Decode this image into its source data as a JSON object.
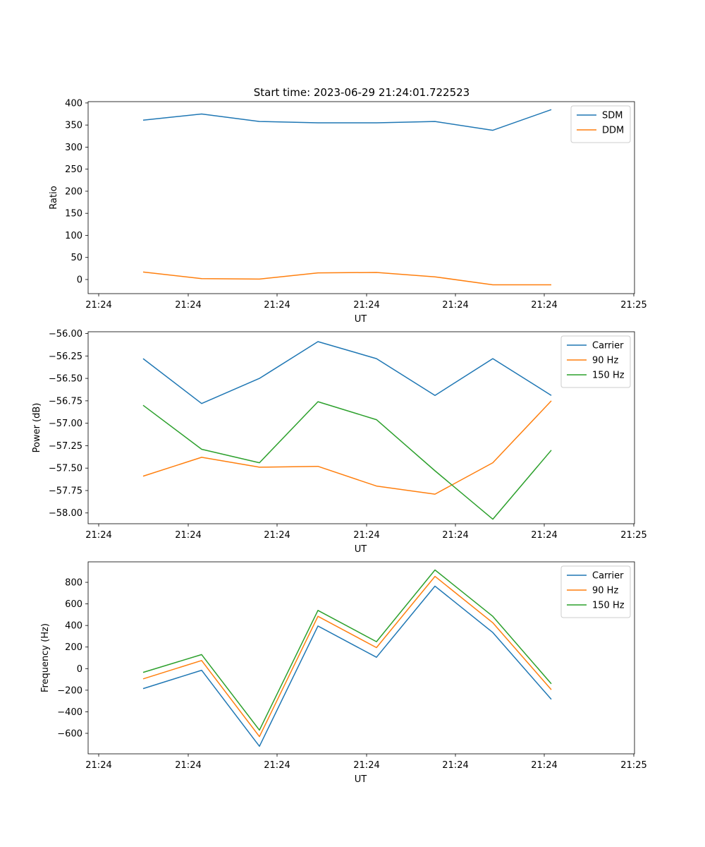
{
  "figure": {
    "title": "Start time: 2023-06-29 21:24:01.722523"
  },
  "colors": {
    "blue": "#1f77b4",
    "orange": "#ff7f0e",
    "green": "#2ca02c"
  },
  "chart_data": [
    {
      "type": "line",
      "title": "Start time: 2023-06-29 21:24:01.722523",
      "xlabel": "UT",
      "ylabel": "Ratio",
      "x_tick_labels": [
        "21:24",
        "21:24",
        "21:24",
        "21:24",
        "21:24",
        "21:24",
        "21:24",
        "21:25"
      ],
      "yticks": [
        0,
        50,
        100,
        150,
        200,
        250,
        300,
        350,
        400
      ],
      "ylim": [
        -32,
        403
      ],
      "legend_position": "upper right",
      "grid": false,
      "series": [
        {
          "name": "SDM",
          "color": "#1f77b4",
          "values": [
            361,
            375,
            358,
            355,
            355,
            358,
            338,
            385
          ]
        },
        {
          "name": "DDM",
          "color": "#ff7f0e",
          "values": [
            17,
            2,
            1,
            15,
            16,
            6,
            -12,
            -12
          ]
        }
      ]
    },
    {
      "type": "line",
      "title": "",
      "xlabel": "UT",
      "ylabel": "Power (dB)",
      "x_tick_labels": [
        "21:24",
        "21:24",
        "21:24",
        "21:24",
        "21:24",
        "21:24",
        "21:24",
        "21:25"
      ],
      "yticks": [
        -58.0,
        -57.75,
        -57.5,
        -57.25,
        -57.0,
        -56.75,
        -56.5,
        -56.25,
        -56.0
      ],
      "ylim": [
        -58.12,
        -55.98
      ],
      "legend_position": "upper right",
      "grid": false,
      "series": [
        {
          "name": "Carrier",
          "color": "#1f77b4",
          "values": [
            -56.28,
            -56.78,
            -56.5,
            -56.09,
            -56.28,
            -56.69,
            -56.28,
            -56.69
          ]
        },
        {
          "name": "90 Hz",
          "color": "#ff7f0e",
          "values": [
            -57.59,
            -57.38,
            -57.49,
            -57.48,
            -57.7,
            -57.79,
            -57.44,
            -56.75
          ]
        },
        {
          "name": "150 Hz",
          "color": "#2ca02c",
          "values": [
            -56.8,
            -57.29,
            -57.44,
            -56.76,
            -56.96,
            -57.53,
            -58.07,
            -57.3
          ]
        }
      ]
    },
    {
      "type": "line",
      "title": "",
      "xlabel": "UT",
      "ylabel": "Frequency (Hz)",
      "x_tick_labels": [
        "21:24",
        "21:24",
        "21:24",
        "21:24",
        "21:24",
        "21:24",
        "21:24",
        "21:25"
      ],
      "yticks": [
        -600,
        -400,
        -200,
        0,
        200,
        400,
        600,
        800
      ],
      "ylim": [
        -790,
        990
      ],
      "legend_position": "upper right",
      "grid": false,
      "series": [
        {
          "name": "Carrier",
          "color": "#1f77b4",
          "values": [
            -185,
            -15,
            -720,
            395,
            105,
            765,
            335,
            -285
          ]
        },
        {
          "name": "90 Hz",
          "color": "#ff7f0e",
          "values": [
            -95,
            75,
            -630,
            485,
            195,
            855,
            425,
            -195
          ]
        },
        {
          "name": "150 Hz",
          "color": "#2ca02c",
          "values": [
            -35,
            130,
            -570,
            540,
            250,
            915,
            485,
            -140
          ]
        }
      ]
    }
  ]
}
